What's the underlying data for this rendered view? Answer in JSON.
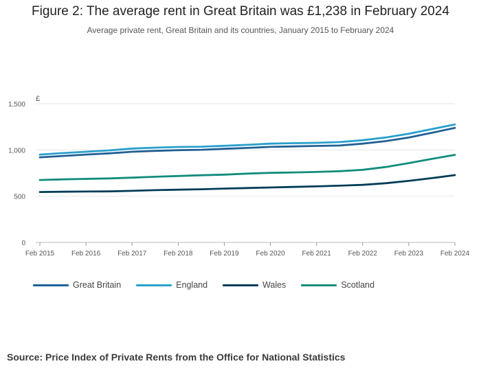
{
  "header": {
    "title": "Figure 2: The average rent in Great Britain was £1,238 in February 2024",
    "subtitle": "Average private rent, Great Britain and its countries, January 2015 to February 2024"
  },
  "footer": {
    "source": "Source: Price Index of Private Rents from the Office for National Statistics"
  },
  "chart_data": {
    "type": "line",
    "title": "Figure 2: The average rent in Great Britain was £1,238 in February 2024",
    "subtitle": "Average private rent, Great Britain and its countries, January 2015 to February 2024",
    "xlabel": "",
    "ylabel": "£",
    "ylim": [
      0,
      1500
    ],
    "yticks": [
      0,
      500,
      1000,
      1500
    ],
    "ytick_labels": [
      "0",
      "500",
      "1,000",
      "1,500"
    ],
    "xlim": [
      2015.0,
      2024.0
    ],
    "xticks": [
      2015,
      2016,
      2017,
      2018,
      2019,
      2020,
      2021,
      2022,
      2023,
      2024
    ],
    "xtick_labels": [
      "Feb 2015",
      "Feb 2016",
      "Feb 2017",
      "Feb 2018",
      "Feb 2019",
      "Feb 2020",
      "Feb 2021",
      "Feb 2022",
      "Feb 2023",
      "Feb 2024"
    ],
    "grid": true,
    "legend_position": "bottom-left",
    "series": [
      {
        "name": "Great Britain",
        "color": "#206095",
        "points": [
          [
            2015.0,
            920
          ],
          [
            2015.5,
            935
          ],
          [
            2016.0,
            950
          ],
          [
            2016.5,
            963
          ],
          [
            2017.0,
            980
          ],
          [
            2017.5,
            990
          ],
          [
            2018.0,
            997
          ],
          [
            2018.5,
            1002
          ],
          [
            2019.0,
            1012
          ],
          [
            2019.5,
            1022
          ],
          [
            2020.0,
            1033
          ],
          [
            2020.5,
            1038
          ],
          [
            2021.0,
            1043
          ],
          [
            2021.5,
            1048
          ],
          [
            2022.0,
            1068
          ],
          [
            2022.5,
            1095
          ],
          [
            2023.0,
            1135
          ],
          [
            2023.5,
            1185
          ],
          [
            2024.0,
            1238
          ]
        ]
      },
      {
        "name": "England",
        "color": "#27A0CC",
        "points": [
          [
            2015.0,
            950
          ],
          [
            2015.5,
            966
          ],
          [
            2016.0,
            980
          ],
          [
            2016.5,
            995
          ],
          [
            2017.0,
            1015
          ],
          [
            2017.5,
            1025
          ],
          [
            2018.0,
            1032
          ],
          [
            2018.5,
            1035
          ],
          [
            2019.0,
            1045
          ],
          [
            2019.5,
            1055
          ],
          [
            2020.0,
            1068
          ],
          [
            2020.5,
            1073
          ],
          [
            2021.0,
            1077
          ],
          [
            2021.5,
            1085
          ],
          [
            2022.0,
            1105
          ],
          [
            2022.5,
            1135
          ],
          [
            2023.0,
            1175
          ],
          [
            2023.5,
            1225
          ],
          [
            2024.0,
            1276
          ]
        ]
      },
      {
        "name": "Wales",
        "color": "#003C57",
        "points": [
          [
            2015.0,
            545
          ],
          [
            2015.5,
            548
          ],
          [
            2016.0,
            550
          ],
          [
            2016.5,
            552
          ],
          [
            2017.0,
            558
          ],
          [
            2017.5,
            565
          ],
          [
            2018.0,
            570
          ],
          [
            2018.5,
            575
          ],
          [
            2019.0,
            582
          ],
          [
            2019.5,
            588
          ],
          [
            2020.0,
            594
          ],
          [
            2020.5,
            600
          ],
          [
            2021.0,
            606
          ],
          [
            2021.5,
            613
          ],
          [
            2022.0,
            622
          ],
          [
            2022.5,
            640
          ],
          [
            2023.0,
            665
          ],
          [
            2023.5,
            695
          ],
          [
            2024.0,
            728
          ]
        ]
      },
      {
        "name": "Scotland",
        "color": "#118C7B",
        "points": [
          [
            2015.0,
            675
          ],
          [
            2015.5,
            682
          ],
          [
            2016.0,
            687
          ],
          [
            2016.5,
            692
          ],
          [
            2017.0,
            700
          ],
          [
            2017.5,
            710
          ],
          [
            2018.0,
            718
          ],
          [
            2018.5,
            726
          ],
          [
            2019.0,
            733
          ],
          [
            2019.5,
            744
          ],
          [
            2020.0,
            752
          ],
          [
            2020.5,
            757
          ],
          [
            2021.0,
            762
          ],
          [
            2021.5,
            770
          ],
          [
            2022.0,
            785
          ],
          [
            2022.5,
            815
          ],
          [
            2023.0,
            858
          ],
          [
            2023.5,
            903
          ],
          [
            2024.0,
            947
          ]
        ]
      }
    ]
  }
}
